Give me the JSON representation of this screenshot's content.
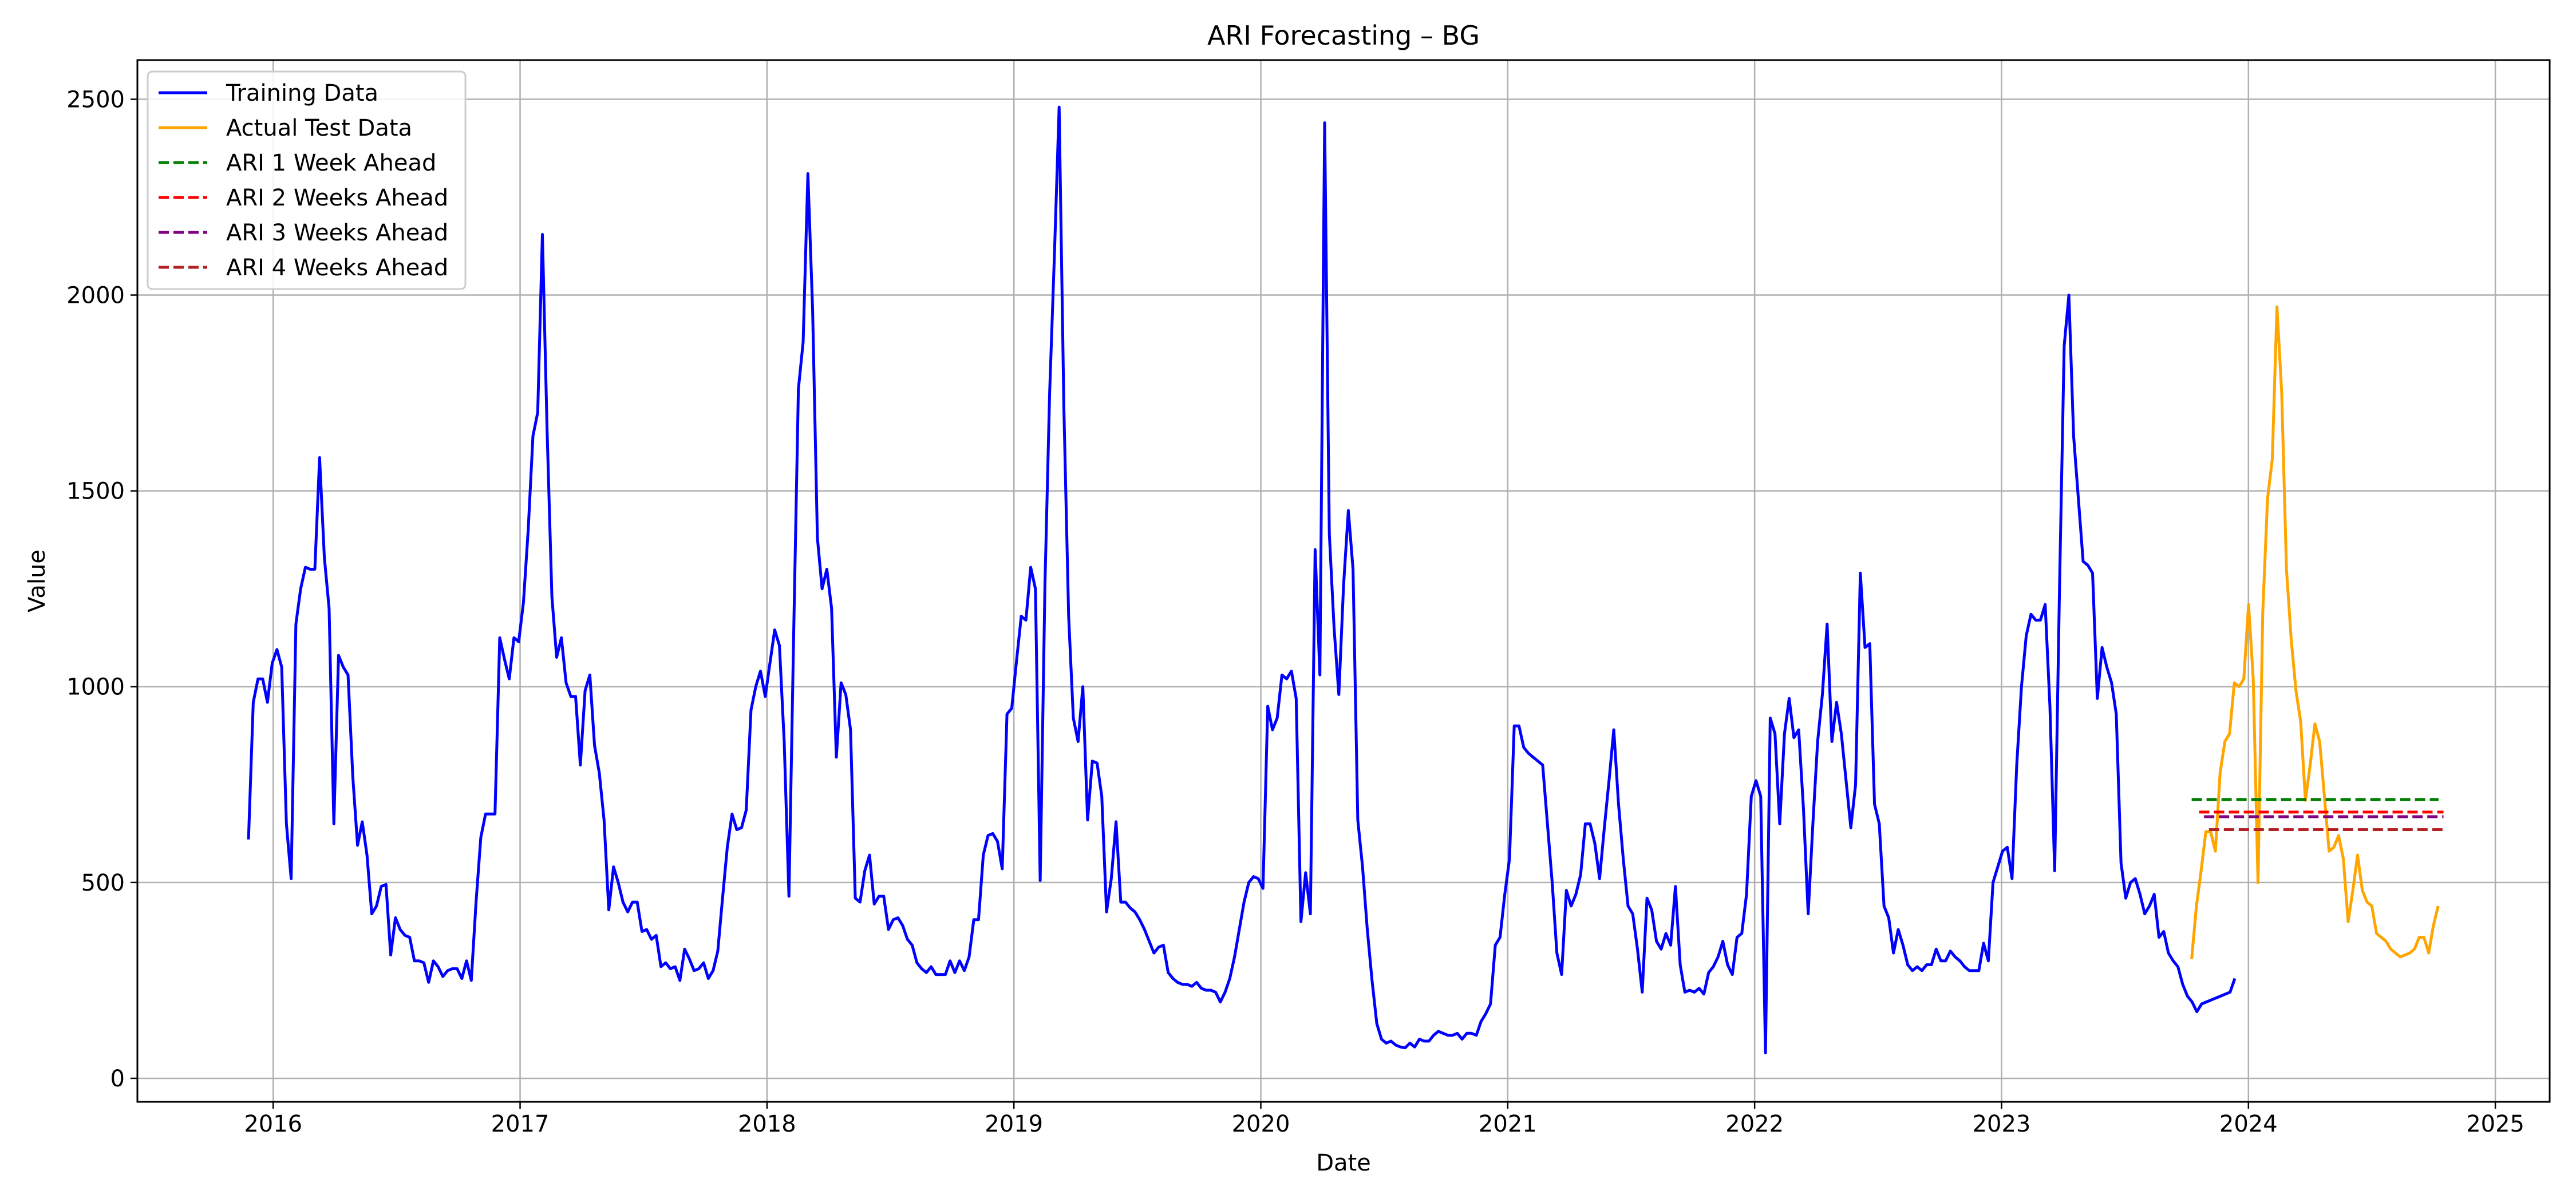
{
  "chart_data": {
    "type": "line",
    "title": "ARI Forecasting – BG",
    "xlabel": "Date",
    "ylabel": "Value",
    "xlim": [
      2015.45,
      2025.22
    ],
    "ylim": [
      -60,
      2600
    ],
    "x_ticks": [
      2016,
      2017,
      2018,
      2019,
      2020,
      2021,
      2022,
      2023,
      2024,
      2025
    ],
    "x_tick_labels": [
      "2016",
      "2017",
      "2018",
      "2019",
      "2020",
      "2021",
      "2022",
      "2023",
      "2024",
      "2025"
    ],
    "y_ticks": [
      0,
      500,
      1000,
      1500,
      2000,
      2500
    ],
    "y_tick_labels": [
      "0",
      "500",
      "1000",
      "1500",
      "2000",
      "2500"
    ],
    "grid": true,
    "legend_position": "top-left",
    "series": [
      {
        "name": "Training Data",
        "color": "#0000ff",
        "style": "solid",
        "x_start": 2015.9,
        "x_step": 0.0192,
        "values": [
          610,
          960,
          1020,
          1020,
          960,
          1060,
          1095,
          1050,
          650,
          510,
          1160,
          1250,
          1305,
          1300,
          1300,
          1585,
          1330,
          1200,
          650,
          1080,
          1050,
          1030,
          770,
          595,
          655,
          570,
          420,
          440,
          490,
          495,
          315,
          410,
          380,
          365,
          360,
          300,
          300,
          295,
          245,
          300,
          285,
          260,
          275,
          280,
          280,
          255,
          300,
          250,
          450,
          615,
          675,
          675,
          675,
          1125,
          1070,
          1020,
          1125,
          1115,
          1215,
          1400,
          1640,
          1700,
          2155,
          1650,
          1230,
          1075,
          1125,
          1010,
          975,
          975,
          800,
          990,
          1030,
          850,
          780,
          660,
          430,
          540,
          500,
          450,
          425,
          450,
          450,
          375,
          380,
          355,
          365,
          285,
          295,
          280,
          285,
          250,
          330,
          305,
          275,
          280,
          295,
          255,
          275,
          325,
          460,
          590,
          675,
          635,
          640,
          685,
          940,
          1000,
          1040,
          975,
          1060,
          1145,
          1105,
          860,
          465,
          1130,
          1760,
          1880,
          2310,
          1960,
          1380,
          1250,
          1300,
          1200,
          820,
          1010,
          980,
          890,
          460,
          450,
          530,
          570,
          445,
          465,
          465,
          380,
          405,
          410,
          390,
          355,
          340,
          295,
          280,
          270,
          285,
          265,
          265,
          265,
          300,
          270,
          300,
          275,
          310,
          405,
          405,
          570,
          620,
          625,
          605,
          535,
          930,
          945,
          1065,
          1180,
          1170,
          1305,
          1250,
          505,
          1260,
          1750,
          2100,
          2480,
          1710,
          1180,
          920,
          860,
          1000,
          660,
          810,
          805,
          720,
          425,
          510,
          655,
          450,
          450,
          435,
          425,
          405,
          380,
          350,
          320,
          335,
          340,
          270,
          255,
          245,
          240,
          240,
          235,
          245,
          230,
          225,
          225,
          220,
          195,
          220,
          255,
          310,
          380,
          450,
          500,
          515,
          510,
          485,
          950,
          890,
          920,
          1030,
          1020,
          1040,
          970,
          400,
          525,
          420,
          1350,
          1030,
          2440,
          1390,
          1150,
          980,
          1260,
          1450,
          1300,
          660,
          540,
          380,
          250,
          140,
          100,
          90,
          95,
          85,
          80,
          78,
          90,
          80,
          100,
          95,
          95,
          110,
          120,
          115,
          110,
          110,
          115,
          100,
          115,
          115,
          110,
          145,
          165,
          190,
          340,
          360,
          470,
          560,
          900,
          900,
          845,
          830,
          820,
          810,
          800,
          650,
          500,
          320,
          265,
          480,
          440,
          470,
          520,
          650,
          650,
          600,
          510,
          640,
          760,
          890,
          700,
          560,
          440,
          420,
          330,
          220,
          460,
          430,
          350,
          330,
          370,
          340,
          490,
          290,
          220,
          225,
          220,
          230,
          215,
          270,
          285,
          310,
          350,
          290,
          265,
          360,
          370,
          470,
          720,
          760,
          720,
          65,
          920,
          880,
          650,
          880,
          970,
          870,
          890,
          690,
          420,
          650,
          860,
          980,
          1160,
          860,
          960,
          880,
          760,
          640,
          750,
          1290,
          1100,
          1110,
          700,
          650,
          440,
          410,
          320,
          380,
          340,
          290,
          275,
          285,
          275,
          290,
          290,
          330,
          300,
          300,
          325,
          310,
          300,
          285,
          275,
          275,
          275,
          345,
          300,
          500,
          540,
          580,
          590,
          510,
          800,
          1000,
          1130,
          1185,
          1170,
          1170,
          1210,
          950,
          530,
          1240,
          1870,
          2000,
          1640,
          1480,
          1320,
          1310,
          1290,
          970,
          1100,
          1050,
          1010,
          930,
          550,
          460,
          500,
          510,
          470,
          420,
          440,
          470,
          360,
          375,
          320,
          300,
          285,
          240,
          210,
          195,
          170,
          190,
          195,
          200,
          205,
          210,
          215,
          220,
          255
        ]
      },
      {
        "name": "Actual Test Data",
        "color": "#ffa500",
        "style": "solid",
        "x_start": 2023.77,
        "x_step": 0.0192,
        "values": [
          305,
          440,
          530,
          630,
          630,
          580,
          780,
          860,
          880,
          1010,
          1000,
          1020,
          1210,
          1020,
          500,
          1190,
          1480,
          1580,
          1970,
          1750,
          1300,
          1120,
          990,
          910,
          710,
          800,
          905,
          860,
          720,
          580,
          590,
          620,
          560,
          400,
          480,
          570,
          480,
          450,
          440,
          370,
          360,
          350,
          330,
          320,
          310,
          315,
          320,
          330,
          360,
          360,
          320,
          390,
          440
        ]
      },
      {
        "name": "ARI 1 Week Ahead",
        "color": "#008000",
        "style": "dashed",
        "x": [
          2023.77,
          2024.77
        ],
        "values": [
          712,
          712
        ]
      },
      {
        "name": "ARI 2 Weeks Ahead",
        "color": "#ff0000",
        "style": "dashed",
        "x": [
          2023.8,
          2024.79
        ],
        "values": [
          680,
          680
        ]
      },
      {
        "name": "ARI 3 Weeks Ahead",
        "color": "#800080",
        "style": "dashed",
        "x": [
          2023.82,
          2024.79
        ],
        "values": [
          668,
          668
        ]
      },
      {
        "name": "ARI 4 Weeks Ahead",
        "color": "#b22222",
        "style": "dashed",
        "x": [
          2023.84,
          2024.79
        ],
        "values": [
          635,
          635
        ]
      }
    ]
  }
}
